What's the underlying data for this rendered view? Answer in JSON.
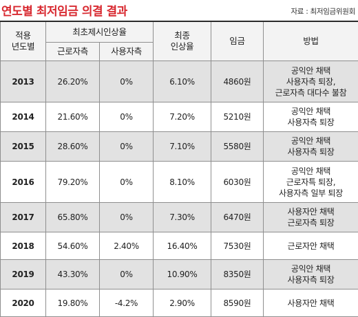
{
  "title": "연도별 최저임금 의결 결과",
  "source": "자료 : 최저임금위원회",
  "headers": {
    "year": [
      "적용",
      "년도별"
    ],
    "proposal_group": "최초제시인상율",
    "labor": "근로자측",
    "employer": "사용자측",
    "final_rate": [
      "최종",
      "인상율"
    ],
    "wage": "임금",
    "method": "방법"
  },
  "rows": [
    {
      "year": "2013",
      "labor": "26.20%",
      "employer": "0%",
      "final": "6.10%",
      "wage": "4860원",
      "method": [
        "공익안 채택",
        "사용자측 퇴장,",
        "근로자측 대다수 불참"
      ]
    },
    {
      "year": "2014",
      "labor": "21.60%",
      "employer": "0%",
      "final": "7.20%",
      "wage": "5210원",
      "method": [
        "공익안 채택",
        "사용자측 퇴장"
      ]
    },
    {
      "year": "2015",
      "labor": "28.60%",
      "employer": "0%",
      "final": "7.10%",
      "wage": "5580원",
      "method": [
        "공익안 채택",
        "사용자측 퇴장"
      ]
    },
    {
      "year": "2016",
      "labor": "79.20%",
      "employer": "0%",
      "final": "8.10%",
      "wage": "6030원",
      "method": [
        "공익안 채택",
        "근로자특 퇴장,",
        "사용자측 일부 퇴장"
      ]
    },
    {
      "year": "2017",
      "labor": "65.80%",
      "employer": "0%",
      "final": "7.30%",
      "wage": "6470원",
      "method": [
        "사용자안 채택",
        "근로자측 퇴장"
      ]
    },
    {
      "year": "2018",
      "labor": "54.60%",
      "employer": "2.40%",
      "final": "16.40%",
      "wage": "7530원",
      "method": [
        "근로자안 채택"
      ]
    },
    {
      "year": "2019",
      "labor": "43.30%",
      "employer": "0%",
      "final": "10.90%",
      "wage": "8350원",
      "method": [
        "공익안 채택",
        "사용자측 퇴장"
      ]
    },
    {
      "year": "2020",
      "labor": "19.80%",
      "employer": "-4.2%",
      "final": "2.90%",
      "wage": "8590원",
      "method": [
        "사용자안 채택"
      ]
    }
  ]
}
